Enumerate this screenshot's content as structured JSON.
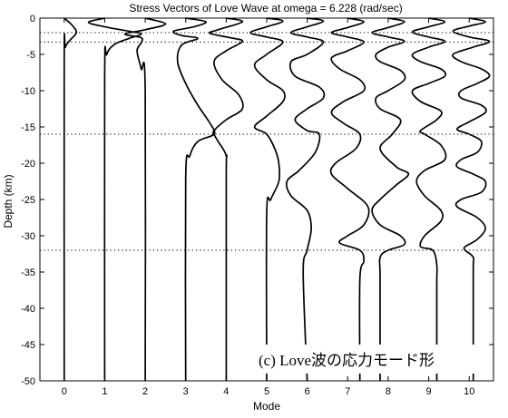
{
  "chart_data": {
    "type": "line",
    "title": "Stress Vectors of Love Wave at omega = 6.228 (rad/sec)",
    "xlabel": "Mode",
    "ylabel": "Depth (km)",
    "xlim": [
      -0.6,
      10.6
    ],
    "ylim": [
      -50,
      0
    ],
    "xticks": [
      "0",
      "1",
      "2",
      "3",
      "4",
      "5",
      "6",
      "7",
      "8",
      "9",
      "10"
    ],
    "yticks": [
      "0",
      "-5",
      "-10",
      "-15",
      "-20",
      "-25",
      "-30",
      "-35",
      "-40",
      "-45",
      "-50"
    ],
    "layer_boundaries_km": [
      -2,
      -3.3,
      -16,
      -32
    ],
    "annotation": "(c) Love波の応力モード形",
    "series": [
      {
        "mode": 0,
        "baseline": 0,
        "values": [
          [
            0.0,
            0
          ],
          [
            0.2,
            -1
          ],
          [
            0.3,
            -2
          ],
          [
            0.15,
            -3
          ],
          [
            0.03,
            -4
          ],
          [
            0.0,
            -6
          ],
          [
            0.0,
            -50
          ]
        ]
      },
      {
        "mode": 1,
        "baseline": 1,
        "values": [
          [
            1.0,
            0
          ],
          [
            0.6,
            -0.6
          ],
          [
            1.1,
            -1.3
          ],
          [
            1.6,
            -1.8
          ],
          [
            1.9,
            -2.2
          ],
          [
            1.6,
            -2.8
          ],
          [
            1.25,
            -3.6
          ],
          [
            1.05,
            -5
          ],
          [
            1.0,
            -8
          ],
          [
            1.0,
            -50
          ]
        ]
      },
      {
        "mode": 2,
        "baseline": 2,
        "values": [
          [
            2.0,
            0
          ],
          [
            2.5,
            -0.8
          ],
          [
            2.0,
            -1.6
          ],
          [
            1.5,
            -2.2
          ],
          [
            1.9,
            -2.7
          ],
          [
            1.9,
            -3.4
          ],
          [
            1.8,
            -4.5
          ],
          [
            1.9,
            -7
          ],
          [
            2.0,
            -10
          ],
          [
            2.0,
            -50
          ]
        ]
      },
      {
        "mode": 3,
        "baseline": 3,
        "values": [
          [
            3.0,
            0
          ],
          [
            3.5,
            -0.5
          ],
          [
            3.2,
            -1.2
          ],
          [
            2.7,
            -1.8
          ],
          [
            2.9,
            -2.4
          ],
          [
            3.3,
            -2.8
          ],
          [
            2.9,
            -3.7
          ],
          [
            2.8,
            -6
          ],
          [
            3.0,
            -9
          ],
          [
            3.3,
            -12
          ],
          [
            3.6,
            -14.5
          ],
          [
            3.7,
            -16
          ],
          [
            3.3,
            -17
          ],
          [
            3.1,
            -19
          ],
          [
            3.0,
            -22
          ],
          [
            3.0,
            -50
          ]
        ]
      },
      {
        "mode": 4,
        "baseline": 4,
        "values": [
          [
            4.0,
            0
          ],
          [
            4.4,
            -0.5
          ],
          [
            3.8,
            -1.6
          ],
          [
            3.6,
            -2.1
          ],
          [
            4.1,
            -2.7
          ],
          [
            4.4,
            -3.2
          ],
          [
            4.0,
            -4.5
          ],
          [
            3.7,
            -6
          ],
          [
            3.9,
            -8.5
          ],
          [
            4.3,
            -10.5
          ],
          [
            4.4,
            -12.5
          ],
          [
            4.0,
            -14
          ],
          [
            3.7,
            -15.5
          ],
          [
            3.7,
            -16
          ],
          [
            3.8,
            -17
          ],
          [
            4.0,
            -19
          ],
          [
            4.0,
            -22
          ],
          [
            4.0,
            -50
          ]
        ]
      },
      {
        "mode": 5,
        "baseline": 5,
        "values": [
          [
            5.0,
            0
          ],
          [
            5.4,
            -0.4
          ],
          [
            5.0,
            -1.2
          ],
          [
            4.6,
            -2.0
          ],
          [
            5.0,
            -2.6
          ],
          [
            5.4,
            -3.3
          ],
          [
            5.0,
            -5
          ],
          [
            4.7,
            -6.5
          ],
          [
            5.0,
            -8.5
          ],
          [
            5.4,
            -10
          ],
          [
            5.4,
            -11.5
          ],
          [
            5.0,
            -13.5
          ],
          [
            4.7,
            -15
          ],
          [
            5.0,
            -16
          ],
          [
            5.2,
            -18
          ],
          [
            5.3,
            -20
          ],
          [
            5.3,
            -22.5
          ],
          [
            5.1,
            -25
          ],
          [
            5.0,
            -27
          ],
          [
            5.0,
            -50
          ]
        ]
      },
      {
        "mode": 6,
        "baseline": 6,
        "values": [
          [
            6.0,
            0
          ],
          [
            6.4,
            -0.4
          ],
          [
            6.0,
            -1.2
          ],
          [
            5.6,
            -2.0
          ],
          [
            6.0,
            -2.6
          ],
          [
            6.4,
            -3.3
          ],
          [
            6.0,
            -5
          ],
          [
            5.6,
            -6
          ],
          [
            5.7,
            -8
          ],
          [
            6.3,
            -9.5
          ],
          [
            6.4,
            -11
          ],
          [
            6.0,
            -12.5
          ],
          [
            5.7,
            -14
          ],
          [
            6.0,
            -15.5
          ],
          [
            6.3,
            -16
          ],
          [
            6.2,
            -18.5
          ],
          [
            5.8,
            -21
          ],
          [
            5.5,
            -22.5
          ],
          [
            5.6,
            -24.5
          ],
          [
            6.0,
            -26.5
          ],
          [
            6.1,
            -29
          ],
          [
            6.0,
            -32
          ],
          [
            5.9,
            -35
          ],
          [
            6.0,
            -50
          ]
        ]
      },
      {
        "mode": 7,
        "baseline": 7,
        "values": [
          [
            7.0,
            0
          ],
          [
            7.4,
            -0.5
          ],
          [
            7.0,
            -1.3
          ],
          [
            6.6,
            -2.0
          ],
          [
            7.0,
            -2.6
          ],
          [
            7.4,
            -3.3
          ],
          [
            7.0,
            -4.5
          ],
          [
            6.6,
            -5.5
          ],
          [
            6.8,
            -7
          ],
          [
            7.3,
            -8.5
          ],
          [
            7.4,
            -10
          ],
          [
            6.9,
            -11.5
          ],
          [
            6.6,
            -13
          ],
          [
            6.9,
            -14.5
          ],
          [
            7.3,
            -16
          ],
          [
            7.2,
            -18
          ],
          [
            6.7,
            -20
          ],
          [
            6.6,
            -21.5
          ],
          [
            7.0,
            -23.5
          ],
          [
            7.5,
            -26
          ],
          [
            7.4,
            -28.5
          ],
          [
            7.0,
            -30
          ],
          [
            6.8,
            -31
          ],
          [
            7.3,
            -32
          ],
          [
            7.4,
            -33.5
          ],
          [
            7.3,
            -36
          ],
          [
            7.3,
            -50
          ]
        ]
      },
      {
        "mode": 8,
        "baseline": 8,
        "values": [
          [
            8.0,
            0
          ],
          [
            8.4,
            -0.5
          ],
          [
            8.0,
            -1.3
          ],
          [
            7.6,
            -2.0
          ],
          [
            8.0,
            -2.6
          ],
          [
            8.4,
            -3.2
          ],
          [
            8.0,
            -4
          ],
          [
            7.7,
            -5
          ],
          [
            7.8,
            -6
          ],
          [
            8.3,
            -7.2
          ],
          [
            8.4,
            -8.5
          ],
          [
            8.0,
            -10
          ],
          [
            7.7,
            -11
          ],
          [
            7.8,
            -12.5
          ],
          [
            8.3,
            -14
          ],
          [
            8.1,
            -16
          ],
          [
            7.8,
            -18
          ],
          [
            8.2,
            -20.5
          ],
          [
            8.5,
            -21.5
          ],
          [
            8.2,
            -23
          ],
          [
            7.8,
            -25
          ],
          [
            7.6,
            -26.5
          ],
          [
            7.8,
            -28.5
          ],
          [
            8.3,
            -30
          ],
          [
            8.4,
            -31.2
          ],
          [
            8.0,
            -32
          ],
          [
            7.8,
            -33
          ],
          [
            7.8,
            -36
          ],
          [
            7.8,
            -50
          ]
        ]
      },
      {
        "mode": 9,
        "baseline": 9,
        "values": [
          [
            9.0,
            0
          ],
          [
            9.4,
            -0.5
          ],
          [
            9.0,
            -1.2
          ],
          [
            8.6,
            -1.9
          ],
          [
            9.0,
            -2.6
          ],
          [
            9.4,
            -3.2
          ],
          [
            9.0,
            -4
          ],
          [
            8.6,
            -5
          ],
          [
            8.8,
            -6
          ],
          [
            9.3,
            -7
          ],
          [
            9.4,
            -8
          ],
          [
            9.0,
            -9
          ],
          [
            8.6,
            -10
          ],
          [
            8.8,
            -11.5
          ],
          [
            9.3,
            -12.8
          ],
          [
            9.2,
            -14
          ],
          [
            8.8,
            -15.5
          ],
          [
            8.9,
            -16
          ],
          [
            9.3,
            -17.5
          ],
          [
            9.4,
            -19.5
          ],
          [
            8.9,
            -21
          ],
          [
            8.7,
            -22.5
          ],
          [
            8.9,
            -24.5
          ],
          [
            9.3,
            -26.5
          ],
          [
            9.3,
            -28
          ],
          [
            8.9,
            -30
          ],
          [
            8.8,
            -31.5
          ],
          [
            9.1,
            -32
          ],
          [
            9.2,
            -34
          ],
          [
            9.2,
            -37
          ],
          [
            9.2,
            -50
          ]
        ]
      },
      {
        "mode": 10,
        "baseline": 10,
        "values": [
          [
            10.0,
            0
          ],
          [
            10.4,
            -0.5
          ],
          [
            10.0,
            -1.1
          ],
          [
            9.6,
            -1.8
          ],
          [
            10.0,
            -2.6
          ],
          [
            10.5,
            -3.2
          ],
          [
            10.1,
            -4
          ],
          [
            9.6,
            -5
          ],
          [
            9.8,
            -6
          ],
          [
            10.3,
            -7
          ],
          [
            10.5,
            -8
          ],
          [
            10.2,
            -9
          ],
          [
            9.8,
            -10
          ],
          [
            9.8,
            -11
          ],
          [
            10.3,
            -12
          ],
          [
            10.4,
            -13
          ],
          [
            10.0,
            -14.3
          ],
          [
            9.7,
            -15.3
          ],
          [
            10.0,
            -16
          ],
          [
            10.3,
            -17
          ],
          [
            10.2,
            -18.5
          ],
          [
            9.8,
            -19.5
          ],
          [
            9.7,
            -20.5
          ],
          [
            10.1,
            -21.5
          ],
          [
            10.4,
            -22.5
          ],
          [
            10.3,
            -24
          ],
          [
            9.8,
            -25
          ],
          [
            9.7,
            -26
          ],
          [
            10.2,
            -27.5
          ],
          [
            10.4,
            -29
          ],
          [
            10.2,
            -30.5
          ],
          [
            9.9,
            -31.5
          ],
          [
            9.9,
            -32
          ],
          [
            10.1,
            -33
          ],
          [
            10.1,
            -35
          ],
          [
            10.1,
            -50
          ]
        ]
      }
    ]
  }
}
